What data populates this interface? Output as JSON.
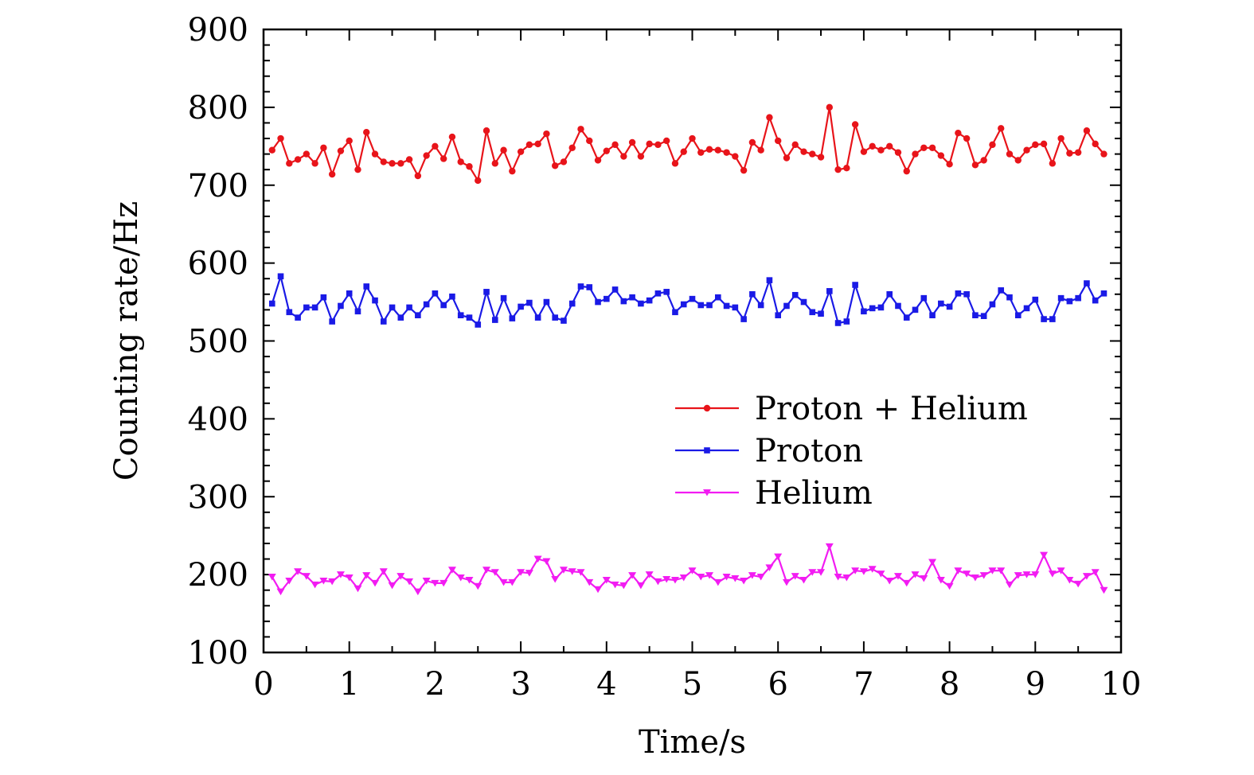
{
  "chart_data": {
    "type": "line",
    "title": "",
    "xlabel": "Time/s",
    "ylabel": "Counting rate/Hz",
    "xlim": [
      0,
      10
    ],
    "ylim": [
      100,
      900
    ],
    "xticks": [
      0,
      1,
      2,
      3,
      4,
      5,
      6,
      7,
      8,
      9,
      10
    ],
    "yticks": [
      100,
      200,
      300,
      400,
      500,
      600,
      700,
      800,
      900
    ],
    "grid": false,
    "legend_position": "center-right",
    "x": [
      0.1,
      0.2,
      0.3,
      0.4,
      0.5,
      0.6,
      0.7,
      0.8,
      0.9,
      1.0,
      1.1,
      1.2,
      1.3,
      1.4,
      1.5,
      1.6,
      1.7,
      1.8,
      1.9,
      2.0,
      2.1,
      2.2,
      2.3,
      2.4,
      2.5,
      2.6,
      2.7,
      2.8,
      2.9,
      3.0,
      3.1,
      3.2,
      3.3,
      3.4,
      3.5,
      3.6,
      3.7,
      3.8,
      3.9,
      4.0,
      4.1,
      4.2,
      4.3,
      4.4,
      4.5,
      4.6,
      4.7,
      4.8,
      4.9,
      5.0,
      5.1,
      5.2,
      5.3,
      5.4,
      5.5,
      5.6,
      5.7,
      5.8,
      5.9,
      6.0,
      6.1,
      6.2,
      6.3,
      6.4,
      6.5,
      6.6,
      6.7,
      6.8,
      6.9,
      7.0,
      7.1,
      7.2,
      7.3,
      7.4,
      7.5,
      7.6,
      7.7,
      7.8,
      7.9,
      8.0,
      8.1,
      8.2,
      8.3,
      8.4,
      8.5,
      8.6,
      8.7,
      8.8,
      8.9,
      9.0,
      9.1,
      9.2,
      9.3,
      9.4,
      9.5,
      9.6,
      9.7,
      9.8
    ],
    "series": [
      {
        "name": "Proton + Helium",
        "color": "#e8141a",
        "marker": "circle",
        "values": [
          745,
          760,
          728,
          733,
          740,
          728,
          748,
          714,
          744,
          757,
          720,
          768,
          740,
          730,
          728,
          728,
          733,
          712,
          738,
          750,
          734,
          762,
          730,
          724,
          706,
          770,
          728,
          745,
          718,
          743,
          752,
          753,
          766,
          725,
          730,
          748,
          772,
          757,
          732,
          744,
          752,
          737,
          755,
          737,
          753,
          752,
          757,
          728,
          743,
          760,
          742,
          746,
          745,
          742,
          737,
          719,
          755,
          745,
          787,
          757,
          735,
          752,
          743,
          740,
          736,
          800,
          720,
          722,
          778,
          743,
          750,
          745,
          750,
          742,
          718,
          740,
          748,
          748,
          738,
          727,
          767,
          760,
          726,
          732,
          752,
          773,
          740,
          732,
          745,
          752,
          753,
          728,
          760,
          741,
          742,
          770,
          753,
          740
        ]
      },
      {
        "name": "Proton",
        "color": "#1a1ae6",
        "marker": "square",
        "values": [
          548,
          583,
          537,
          530,
          543,
          543,
          556,
          525,
          545,
          561,
          538,
          570,
          552,
          525,
          543,
          530,
          543,
          533,
          547,
          561,
          546,
          557,
          533,
          530,
          521,
          563,
          527,
          555,
          529,
          544,
          549,
          530,
          550,
          530,
          526,
          548,
          570,
          569,
          550,
          554,
          566,
          551,
          556,
          548,
          552,
          561,
          563,
          537,
          547,
          554,
          546,
          546,
          556,
          545,
          543,
          528,
          560,
          546,
          578,
          533,
          545,
          559,
          550,
          537,
          535,
          564,
          523,
          525,
          572,
          538,
          542,
          543,
          560,
          545,
          530,
          540,
          555,
          533,
          548,
          544,
          561,
          560,
          533,
          532,
          547,
          565,
          556,
          533,
          542,
          553,
          528,
          528,
          555,
          551,
          555,
          574,
          552,
          561
        ]
      },
      {
        "name": "Helium",
        "color": "#f21cf2",
        "marker": "triangle-down",
        "values": [
          197,
          178,
          192,
          204,
          198,
          187,
          192,
          191,
          200,
          196,
          182,
          199,
          189,
          204,
          186,
          198,
          191,
          178,
          192,
          189,
          189,
          206,
          196,
          193,
          185,
          206,
          203,
          190,
          190,
          203,
          202,
          220,
          217,
          194,
          206,
          204,
          203,
          190,
          181,
          193,
          187,
          186,
          199,
          186,
          200,
          191,
          194,
          193,
          196,
          205,
          197,
          199,
          190,
          197,
          195,
          192,
          199,
          197,
          209,
          223,
          190,
          198,
          193,
          203,
          203,
          236,
          197,
          196,
          205,
          204,
          207,
          201,
          192,
          198,
          189,
          200,
          195,
          216,
          193,
          185,
          205,
          201,
          196,
          199,
          205,
          205,
          187,
          199,
          200,
          200,
          225,
          201,
          205,
          193,
          188,
          198,
          203,
          180
        ]
      }
    ]
  }
}
